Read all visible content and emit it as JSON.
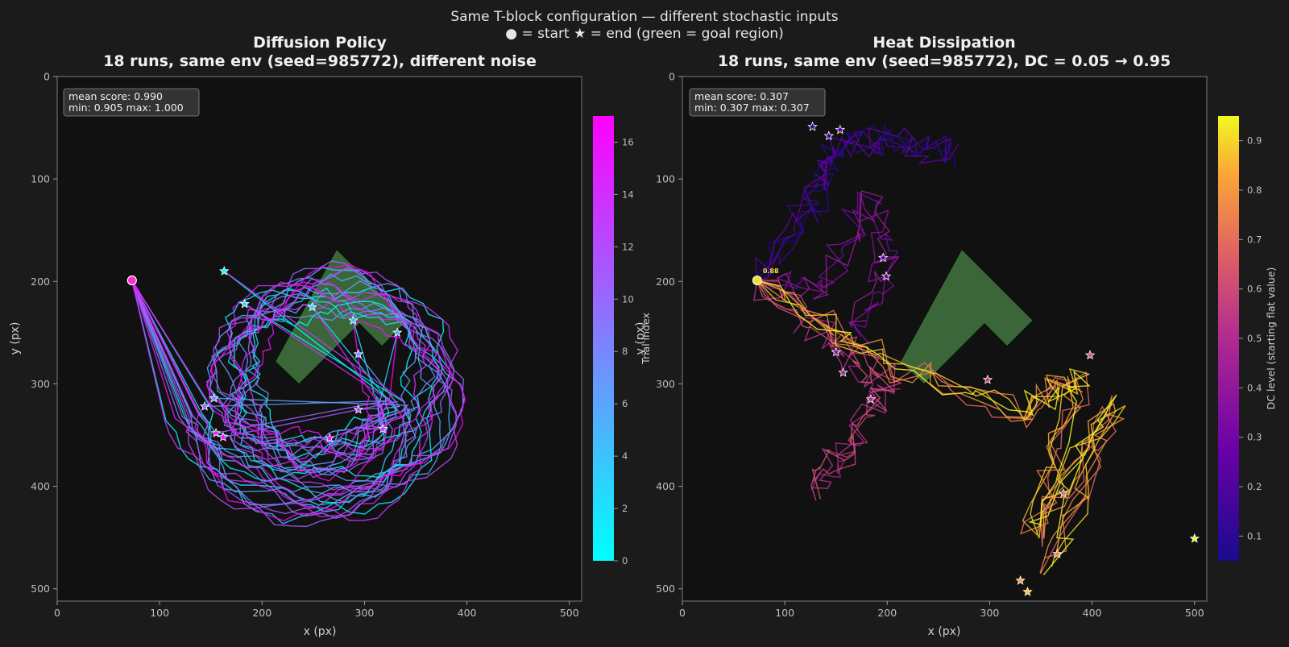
{
  "figure": {
    "suptitle": "Same T-block configuration — different stochastic inputs",
    "subtitle": "● = start   ★ = end   (green = goal region)"
  },
  "colors": {
    "background": "#1b1b1b",
    "axes_bg": "#111111",
    "spine": "#6b6b6b",
    "text": "#e6e6e6",
    "tick": "#bdbdbd",
    "goal": "#4c8a4c"
  },
  "chart_data": [
    {
      "type": "line",
      "title": "Diffusion Policy",
      "subtitle": "18 runs, same env (seed=985772), different noise",
      "xlabel": "x (px)",
      "ylabel": "y (px)",
      "xlim": [
        0,
        512
      ],
      "ylim": [
        512,
        0
      ],
      "xticks": [
        "0",
        "100",
        "200",
        "300",
        "400",
        "500"
      ],
      "yticks": [
        "0",
        "100",
        "200",
        "300",
        "400",
        "500"
      ],
      "stats_line1": "mean score: 0.990",
      "stats_line2": "min: 0.905   max: 1.000",
      "colorbar": {
        "label": "Trial index",
        "cmap": "cool",
        "range": [
          0,
          17
        ],
        "ticks": [
          "0",
          "2",
          "4",
          "6",
          "8",
          "10",
          "12",
          "14",
          "16"
        ]
      },
      "start": {
        "x": 73,
        "y": 199
      },
      "goal_polygon": [
        [
          214,
          278
        ],
        [
          236,
          299
        ],
        [
          295,
          240
        ],
        [
          317,
          262
        ],
        [
          341,
          238
        ],
        [
          273,
          170
        ]
      ],
      "end_points": [
        {
          "x": 163,
          "y": 190
        },
        {
          "x": 183,
          "y": 222
        },
        {
          "x": 249,
          "y": 225
        },
        {
          "x": 289,
          "y": 238
        },
        {
          "x": 332,
          "y": 250
        },
        {
          "x": 294,
          "y": 271
        },
        {
          "x": 153,
          "y": 314
        },
        {
          "x": 144,
          "y": 322
        },
        {
          "x": 294,
          "y": 325
        },
        {
          "x": 318,
          "y": 344
        },
        {
          "x": 155,
          "y": 348
        },
        {
          "x": 162,
          "y": 352
        },
        {
          "x": 266,
          "y": 353
        }
      ]
    },
    {
      "type": "line",
      "title": "Heat Dissipation",
      "subtitle": "18 runs, same env (seed=985772), DC = 0.05 → 0.95",
      "xlabel": "x (px)",
      "ylabel": "y (px)",
      "xlim": [
        0,
        512
      ],
      "ylim": [
        512,
        0
      ],
      "xticks": [
        "0",
        "100",
        "200",
        "300",
        "400",
        "500"
      ],
      "yticks": [
        "0",
        "100",
        "200",
        "300",
        "400",
        "500"
      ],
      "stats_line1": "mean score: 0.307",
      "stats_line2": "min: 0.307   max: 0.307",
      "colorbar": {
        "label": "DC level (starting flat value)",
        "cmap": "plasma",
        "range": [
          0.05,
          0.95
        ],
        "ticks": [
          "0.1",
          "0.2",
          "0.3",
          "0.4",
          "0.5",
          "0.6",
          "0.7",
          "0.8",
          "0.9"
        ]
      },
      "start": {
        "x": 73,
        "y": 199
      },
      "start_label": "0.88",
      "goal_polygon": [
        [
          214,
          278
        ],
        [
          236,
          299
        ],
        [
          295,
          240
        ],
        [
          317,
          262
        ],
        [
          341,
          238
        ],
        [
          273,
          170
        ]
      ],
      "end_points": [
        {
          "x": 127,
          "y": 49
        },
        {
          "x": 143,
          "y": 58
        },
        {
          "x": 154,
          "y": 52
        },
        {
          "x": 196,
          "y": 177
        },
        {
          "x": 199,
          "y": 195
        },
        {
          "x": 150,
          "y": 269
        },
        {
          "x": 157,
          "y": 289
        },
        {
          "x": 184,
          "y": 315
        },
        {
          "x": 298,
          "y": 296
        },
        {
          "x": 398,
          "y": 272
        },
        {
          "x": 372,
          "y": 407
        },
        {
          "x": 366,
          "y": 466
        },
        {
          "x": 330,
          "y": 492
        },
        {
          "x": 337,
          "y": 503
        },
        {
          "x": 500,
          "y": 451
        }
      ]
    }
  ]
}
